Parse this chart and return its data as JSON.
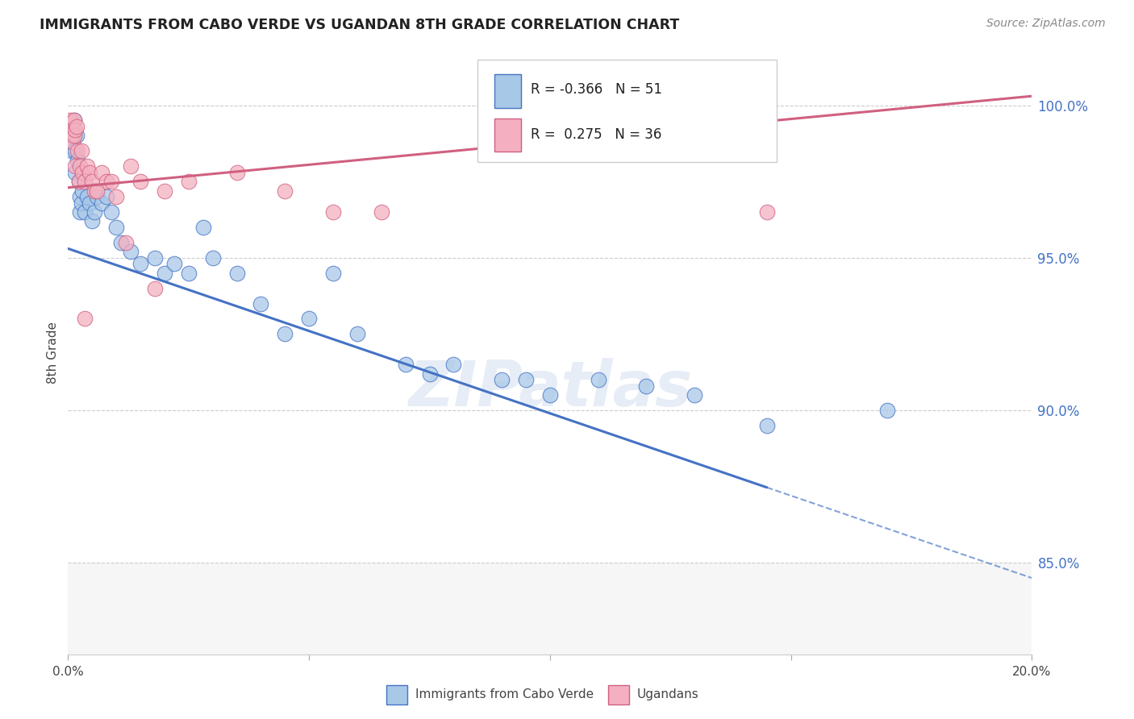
{
  "title": "IMMIGRANTS FROM CABO VERDE VS UGANDAN 8TH GRADE CORRELATION CHART",
  "source": "Source: ZipAtlas.com",
  "ylabel": "8th Grade",
  "xmin": 0.0,
  "xmax": 20.0,
  "ymin": 82.0,
  "ymax": 101.8,
  "plot_ymin": 85.0,
  "plot_ymax": 101.8,
  "yticks": [
    85.0,
    90.0,
    95.0,
    100.0
  ],
  "ytick_labels": [
    "85.0%",
    "90.0%",
    "95.0%",
    "100.0%"
  ],
  "legend_label1": "Immigrants from Cabo Verde",
  "legend_label2": "Ugandans",
  "blue_color": "#a8c8e8",
  "pink_color": "#f4b0c0",
  "blue_line_color": "#4472C4",
  "pink_line_color": "#D06080",
  "watermark": "ZIPatlas",
  "blue_r": -0.366,
  "blue_n": 51,
  "pink_r": 0.275,
  "pink_n": 36,
  "blue_x": [
    0.05,
    0.07,
    0.08,
    0.1,
    0.12,
    0.13,
    0.15,
    0.15,
    0.18,
    0.2,
    0.22,
    0.25,
    0.25,
    0.28,
    0.3,
    0.35,
    0.4,
    0.45,
    0.5,
    0.55,
    0.6,
    0.7,
    0.8,
    0.9,
    1.0,
    1.1,
    1.3,
    1.5,
    1.8,
    2.0,
    2.2,
    2.5,
    2.8,
    3.0,
    3.5,
    4.0,
    4.5,
    5.0,
    5.5,
    6.0,
    7.0,
    7.5,
    8.0,
    9.0,
    9.5,
    10.0,
    11.0,
    12.0,
    13.0,
    14.5,
    17.0
  ],
  "blue_y": [
    99.0,
    98.5,
    99.2,
    98.8,
    99.5,
    99.0,
    98.5,
    97.8,
    99.0,
    98.2,
    97.5,
    97.0,
    96.5,
    96.8,
    97.2,
    96.5,
    97.0,
    96.8,
    96.2,
    96.5,
    97.0,
    96.8,
    97.0,
    96.5,
    96.0,
    95.5,
    95.2,
    94.8,
    95.0,
    94.5,
    94.8,
    94.5,
    96.0,
    95.0,
    94.5,
    93.5,
    92.5,
    93.0,
    94.5,
    92.5,
    91.5,
    91.2,
    91.5,
    91.0,
    91.0,
    90.5,
    91.0,
    90.8,
    90.5,
    89.5,
    90.0
  ],
  "pink_x": [
    0.05,
    0.07,
    0.08,
    0.1,
    0.12,
    0.13,
    0.15,
    0.15,
    0.18,
    0.2,
    0.22,
    0.25,
    0.28,
    0.3,
    0.35,
    0.4,
    0.45,
    0.5,
    0.55,
    0.7,
    0.8,
    0.9,
    1.0,
    1.3,
    1.5,
    2.0,
    2.5,
    3.5,
    4.5,
    5.5,
    6.5,
    1.8,
    0.6,
    0.35,
    1.2,
    14.5
  ],
  "pink_y": [
    99.5,
    99.0,
    99.2,
    98.8,
    99.5,
    99.0,
    99.2,
    98.0,
    99.3,
    98.5,
    97.5,
    98.0,
    98.5,
    97.8,
    97.5,
    98.0,
    97.8,
    97.5,
    97.2,
    97.8,
    97.5,
    97.5,
    97.0,
    98.0,
    97.5,
    97.2,
    97.5,
    97.8,
    97.2,
    96.5,
    96.5,
    94.0,
    97.2,
    93.0,
    95.5,
    96.5
  ]
}
